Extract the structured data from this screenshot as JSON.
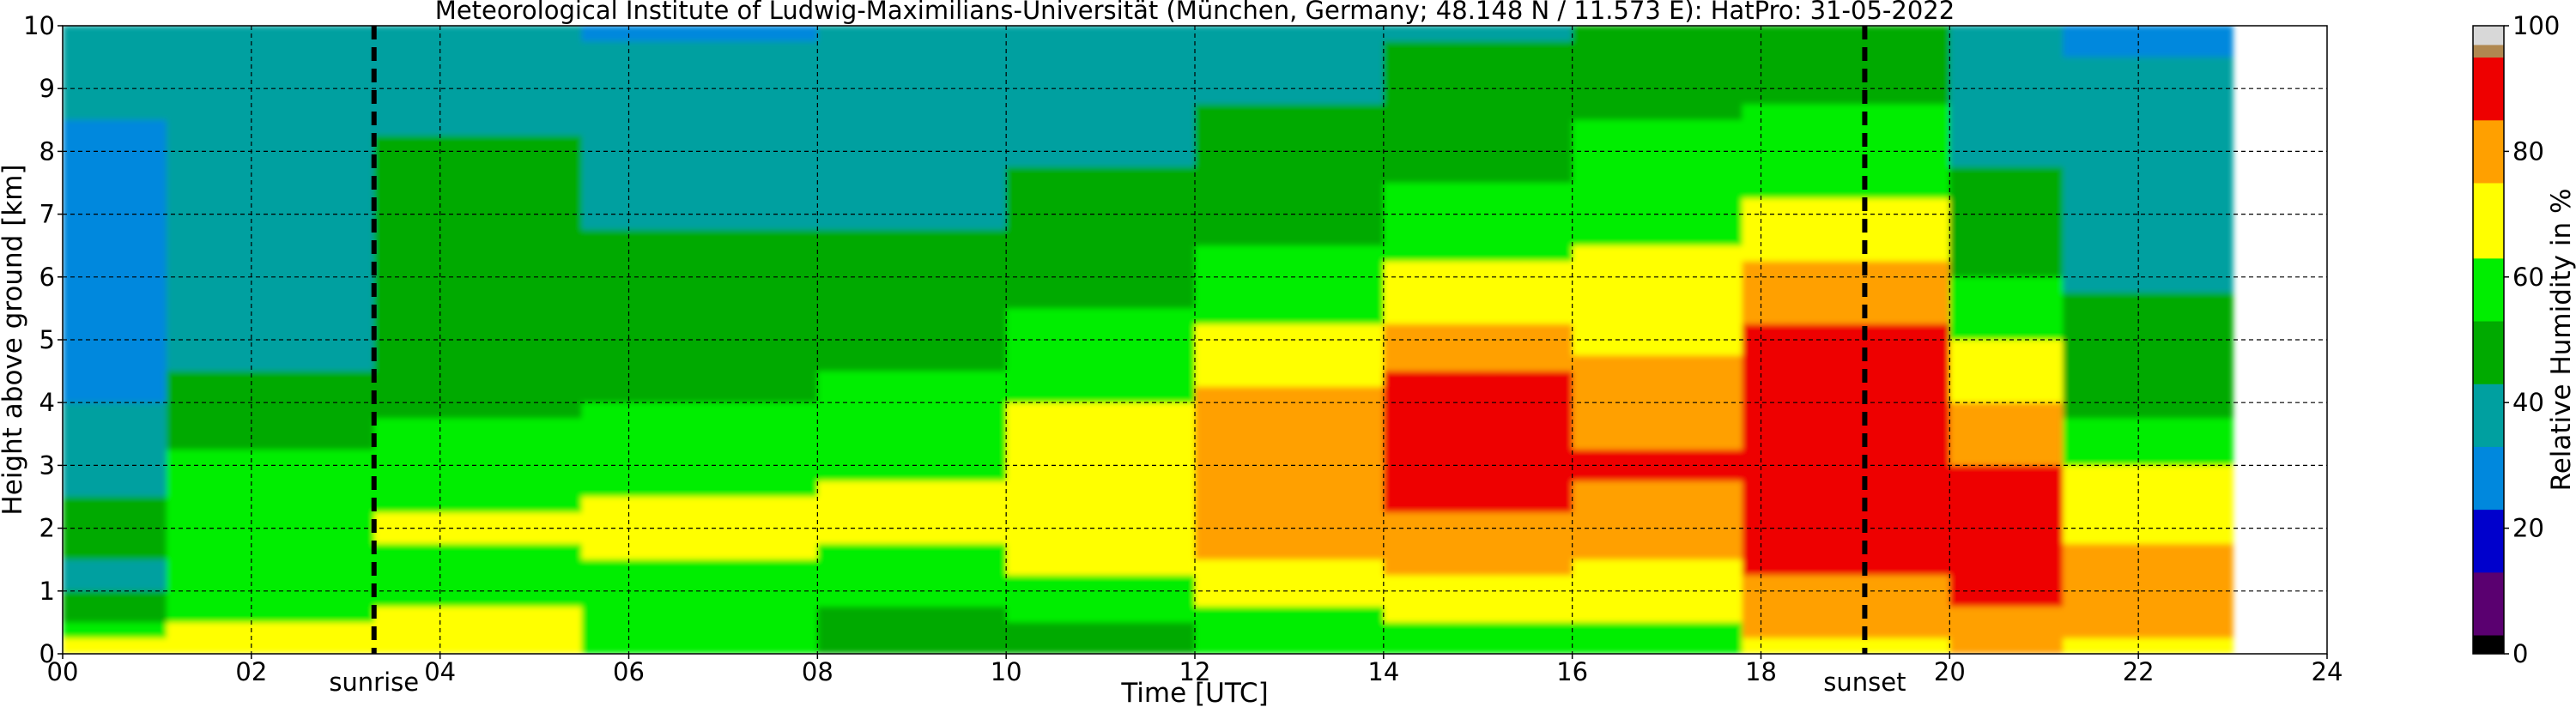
{
  "chart_data": {
    "type": "heatmap",
    "title": "Meteorological Institute of Ludwig-Maximilians-Universität (München, Germany; 48.148 N / 11.573 E):    HatPro: 31-05-2022",
    "xlabel": "Time [UTC]",
    "ylabel": "Height above ground [km]",
    "xlim": [
      0,
      24
    ],
    "ylim": [
      0,
      10
    ],
    "x_ticks": [
      "00",
      "02",
      "04",
      "06",
      "08",
      "10",
      "12",
      "14",
      "16",
      "18",
      "20",
      "22",
      "24"
    ],
    "y_ticks": [
      "0",
      "1",
      "2",
      "3",
      "4",
      "5",
      "6",
      "7",
      "8",
      "9",
      "10"
    ],
    "grid": true,
    "data_end_hour": 23.0,
    "events": [
      {
        "name": "sunrise",
        "hour": 3.3
      },
      {
        "name": "sunset",
        "hour": 19.1
      }
    ],
    "colorbar": {
      "label": "Relative Humidity in %",
      "min": 0,
      "max": 100,
      "ticks": [
        "0",
        "20",
        "40",
        "60",
        "80",
        "100"
      ],
      "colors": [
        {
          "from": 0,
          "to": 3,
          "color": "#000000"
        },
        {
          "from": 3,
          "to": 13,
          "color": "#5a0070"
        },
        {
          "from": 13,
          "to": 23,
          "color": "#0000cc"
        },
        {
          "from": 23,
          "to": 33,
          "color": "#0088dd"
        },
        {
          "from": 33,
          "to": 43,
          "color": "#00a0a0"
        },
        {
          "from": 43,
          "to": 53,
          "color": "#00aa00"
        },
        {
          "from": 53,
          "to": 63,
          "color": "#00ee00"
        },
        {
          "from": 63,
          "to": 75,
          "color": "#ffff00"
        },
        {
          "from": 75,
          "to": 85,
          "color": "#ffa000"
        },
        {
          "from": 85,
          "to": 95,
          "color": "#ee0000"
        },
        {
          "from": 95,
          "to": 97,
          "color": "#b08850"
        },
        {
          "from": 97,
          "to": 100,
          "color": "#d8d8d8"
        }
      ]
    },
    "humidity_profiles": [
      {
        "start_hour": 0.0,
        "end_hour": 1.1,
        "levels_rh": [
          67,
          40,
          45,
          40,
          32,
          30,
          30,
          30,
          32,
          34,
          35
        ]
      },
      {
        "start_hour": 1.1,
        "end_hour": 3.3,
        "levels_rh": [
          70,
          55,
          62,
          56,
          45,
          40,
          42,
          42,
          42,
          38,
          33
        ]
      },
      {
        "start_hour": 3.3,
        "end_hour": 5.5,
        "levels_rh": [
          72,
          58,
          64,
          58,
          52,
          48,
          46,
          44,
          44,
          40,
          33
        ]
      },
      {
        "start_hour": 5.5,
        "end_hour": 8.0,
        "levels_rh": [
          55,
          58,
          66,
          60,
          52,
          47,
          45,
          42,
          38,
          35,
          32
        ]
      },
      {
        "start_hour": 8.0,
        "end_hour": 10.0,
        "levels_rh": [
          45,
          55,
          67,
          62,
          55,
          50,
          46,
          42,
          38,
          36,
          33
        ]
      },
      {
        "start_hour": 10.0,
        "end_hour": 12.0,
        "levels_rh": [
          48,
          58,
          72,
          74,
          64,
          55,
          50,
          46,
          42,
          40,
          36
        ]
      },
      {
        "start_hour": 12.0,
        "end_hour": 14.0,
        "levels_rh": [
          52,
          68,
          82,
          84,
          78,
          64,
          56,
          50,
          46,
          42,
          38
        ]
      },
      {
        "start_hour": 14.0,
        "end_hour": 16.0,
        "levels_rh": [
          55,
          72,
          84,
          90,
          88,
          80,
          66,
          56,
          50,
          46,
          42
        ]
      },
      {
        "start_hour": 16.0,
        "end_hour": 17.8,
        "levels_rh": [
          56,
          70,
          80,
          86,
          80,
          72,
          66,
          58,
          54,
          52,
          48
        ]
      },
      {
        "start_hour": 17.8,
        "end_hour": 20.0,
        "levels_rh": [
          72,
          84,
          88,
          90,
          88,
          86,
          80,
          64,
          56,
          52,
          48
        ]
      },
      {
        "start_hour": 20.0,
        "end_hour": 21.2,
        "levels_rh": [
          82,
          86,
          88,
          86,
          76,
          62,
          52,
          46,
          42,
          38,
          36
        ]
      },
      {
        "start_hour": 21.2,
        "end_hour": 23.0,
        "levels_rh": [
          74,
          78,
          74,
          62,
          50,
          46,
          42,
          40,
          36,
          34,
          32
        ]
      }
    ]
  }
}
